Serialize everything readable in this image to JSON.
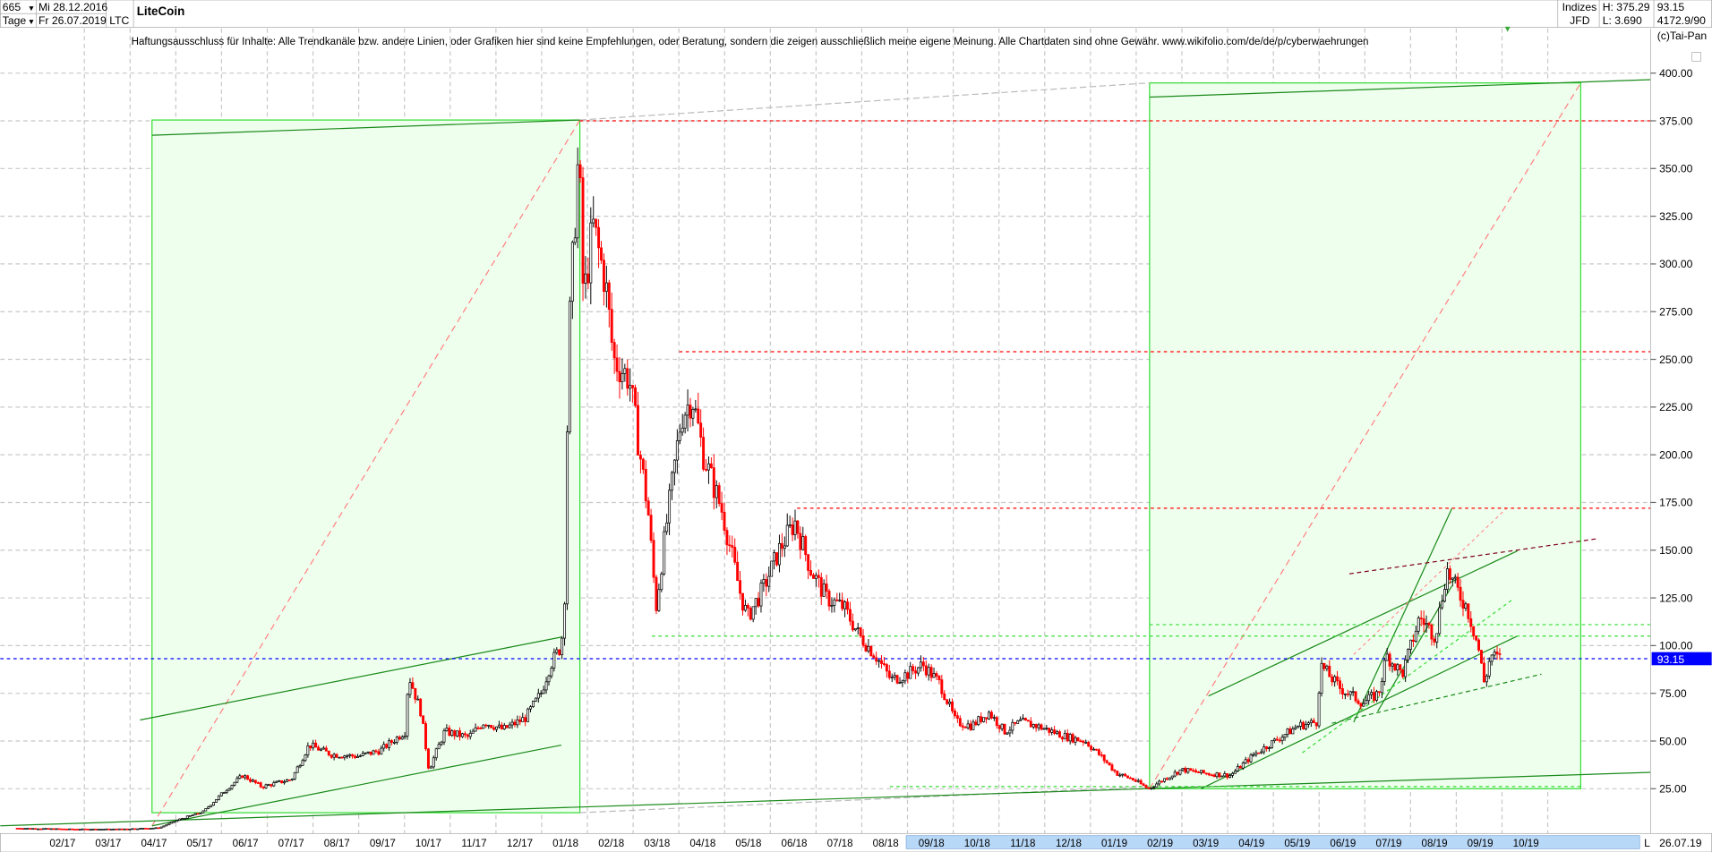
{
  "header": {
    "bars_count": "665",
    "period": "Tage",
    "start_date": "Mi 28.12.2016",
    "end_date": "Fr 26.07.2019",
    "symbol": "LTC",
    "title": "LiteCoin",
    "category": "Indizes",
    "source": "JFD",
    "high": "H: 375.29",
    "low": "L: 3.690",
    "last": "93.15",
    "extra": "4172.9/90",
    "copyright": "(c)Tai-Pan"
  },
  "disclaimer": "Haftungsausschluss für Inhalte: Alle Trendkanäle bzw. andere Linien, oder Grafiken hier sind keine Empfehlungen, oder Beratung, sondern die zeigen ausschließlich meine eigene Meinung. Alle Chartdaten sind ohne Gewähr.  www.wikifolio.com/de/de/p/cyberwaehrungen",
  "footer": {
    "scale_mode": "L",
    "date": "26.07.19"
  },
  "colors": {
    "up": "#000000",
    "down": "#ff0000",
    "box_fill": "#efffee",
    "box_stroke": "#33dd33",
    "trend": "#1a8a1a",
    "last_price": "#0000ff"
  },
  "chart_data": {
    "type": "candlestick",
    "title": "LiteCoin",
    "ylim": [
      0,
      410
    ],
    "y_ticks": [
      "400.00",
      "375.00",
      "350.00",
      "325.00",
      "300.00",
      "275.00",
      "250.00",
      "225.00",
      "200.00",
      "175.00",
      "150.00",
      "125.00",
      "100.00",
      "75.00",
      "50.00",
      "25.00"
    ],
    "x_ticks": [
      "02/17",
      "03/17",
      "04/17",
      "05/17",
      "06/17",
      "07/17",
      "08/17",
      "09/17",
      "10/17",
      "11/17",
      "12/17",
      "01/18",
      "02/18",
      "03/18",
      "04/18",
      "05/18",
      "06/18",
      "07/18",
      "08/18",
      "09/18",
      "10/18",
      "11/18",
      "12/18",
      "01/19",
      "02/19",
      "03/19",
      "04/19",
      "05/19",
      "06/19",
      "07/19",
      "08/19",
      "09/19",
      "10/19"
    ],
    "last_price": 93.15,
    "grid": true,
    "horizontal_levels": [
      {
        "value": 375,
        "color": "#ff0000"
      },
      {
        "value": 254,
        "color": "#ff0000"
      },
      {
        "value": 172,
        "color": "#ff0000"
      },
      {
        "value": 105,
        "color": "#33dd33"
      },
      {
        "value": 111,
        "color": "#33dd33"
      },
      {
        "value": 93.15,
        "color": "#0000ff"
      }
    ],
    "close_series": [
      [
        "2016-12-28",
        4.3
      ],
      [
        "2017-02-01",
        3.8
      ],
      [
        "2017-03-01",
        3.8
      ],
      [
        "2017-03-28",
        4.5
      ],
      [
        "2017-04-10",
        9
      ],
      [
        "2017-04-25",
        13
      ],
      [
        "2017-05-10",
        25
      ],
      [
        "2017-05-20",
        32
      ],
      [
        "2017-06-01",
        26
      ],
      [
        "2017-06-20",
        30
      ],
      [
        "2017-07-01",
        48
      ],
      [
        "2017-07-15",
        43
      ],
      [
        "2017-08-01",
        42
      ],
      [
        "2017-08-15",
        45
      ],
      [
        "2017-08-31",
        55
      ],
      [
        "2017-09-02",
        85
      ],
      [
        "2017-09-10",
        65
      ],
      [
        "2017-09-15",
        35
      ],
      [
        "2017-09-25",
        55
      ],
      [
        "2017-10-10",
        52
      ],
      [
        "2017-10-20",
        60
      ],
      [
        "2017-11-01",
        56
      ],
      [
        "2017-11-15",
        62
      ],
      [
        "2017-11-25",
        75
      ],
      [
        "2017-12-01",
        90
      ],
      [
        "2017-12-08",
        100
      ],
      [
        "2017-12-11",
        140
      ],
      [
        "2017-12-12",
        250
      ],
      [
        "2017-12-15",
        300
      ],
      [
        "2017-12-19",
        360
      ],
      [
        "2017-12-22",
        280
      ],
      [
        "2017-12-28",
        320
      ],
      [
        "2018-01-05",
        290
      ],
      [
        "2018-01-10",
        250
      ],
      [
        "2018-01-20",
        240
      ],
      [
        "2018-02-01",
        170
      ],
      [
        "2018-02-06",
        120
      ],
      [
        "2018-02-12",
        160
      ],
      [
        "2018-02-22",
        220
      ],
      [
        "2018-03-01",
        230
      ],
      [
        "2018-03-08",
        200
      ],
      [
        "2018-03-20",
        170
      ],
      [
        "2018-04-01",
        125
      ],
      [
        "2018-04-05",
        115
      ],
      [
        "2018-04-15",
        130
      ],
      [
        "2018-04-25",
        150
      ],
      [
        "2018-05-05",
        165
      ],
      [
        "2018-05-15",
        140
      ],
      [
        "2018-05-25",
        125
      ],
      [
        "2018-06-05",
        120
      ],
      [
        "2018-06-15",
        105
      ],
      [
        "2018-06-25",
        95
      ],
      [
        "2018-07-05",
        82
      ],
      [
        "2018-07-15",
        85
      ],
      [
        "2018-07-25",
        90
      ],
      [
        "2018-08-05",
        80
      ],
      [
        "2018-08-15",
        60
      ],
      [
        "2018-08-25",
        58
      ],
      [
        "2018-09-05",
        65
      ],
      [
        "2018-09-15",
        55
      ],
      [
        "2018-09-25",
        60
      ],
      [
        "2018-10-05",
        58
      ],
      [
        "2018-10-15",
        55
      ],
      [
        "2018-10-25",
        52
      ],
      [
        "2018-11-05",
        50
      ],
      [
        "2018-11-15",
        42
      ],
      [
        "2018-11-25",
        33
      ],
      [
        "2018-12-05",
        30
      ],
      [
        "2018-12-15",
        25
      ],
      [
        "2018-12-25",
        30
      ],
      [
        "2019-01-05",
        35
      ],
      [
        "2019-01-20",
        33
      ],
      [
        "2019-02-05",
        32
      ],
      [
        "2019-02-20",
        43
      ],
      [
        "2019-03-05",
        50
      ],
      [
        "2019-03-20",
        58
      ],
      [
        "2019-04-01",
        60
      ],
      [
        "2019-04-03",
        90
      ],
      [
        "2019-04-15",
        78
      ],
      [
        "2019-04-30",
        70
      ],
      [
        "2019-05-10",
        75
      ],
      [
        "2019-05-15",
        95
      ],
      [
        "2019-05-25",
        85
      ],
      [
        "2019-06-05",
        115
      ],
      [
        "2019-06-15",
        105
      ],
      [
        "2019-06-22",
        140
      ],
      [
        "2019-06-28",
        130
      ],
      [
        "2019-07-05",
        120
      ],
      [
        "2019-07-12",
        100
      ],
      [
        "2019-07-16",
        80
      ],
      [
        "2019-07-20",
        95
      ],
      [
        "2019-07-26",
        93.15
      ]
    ]
  }
}
